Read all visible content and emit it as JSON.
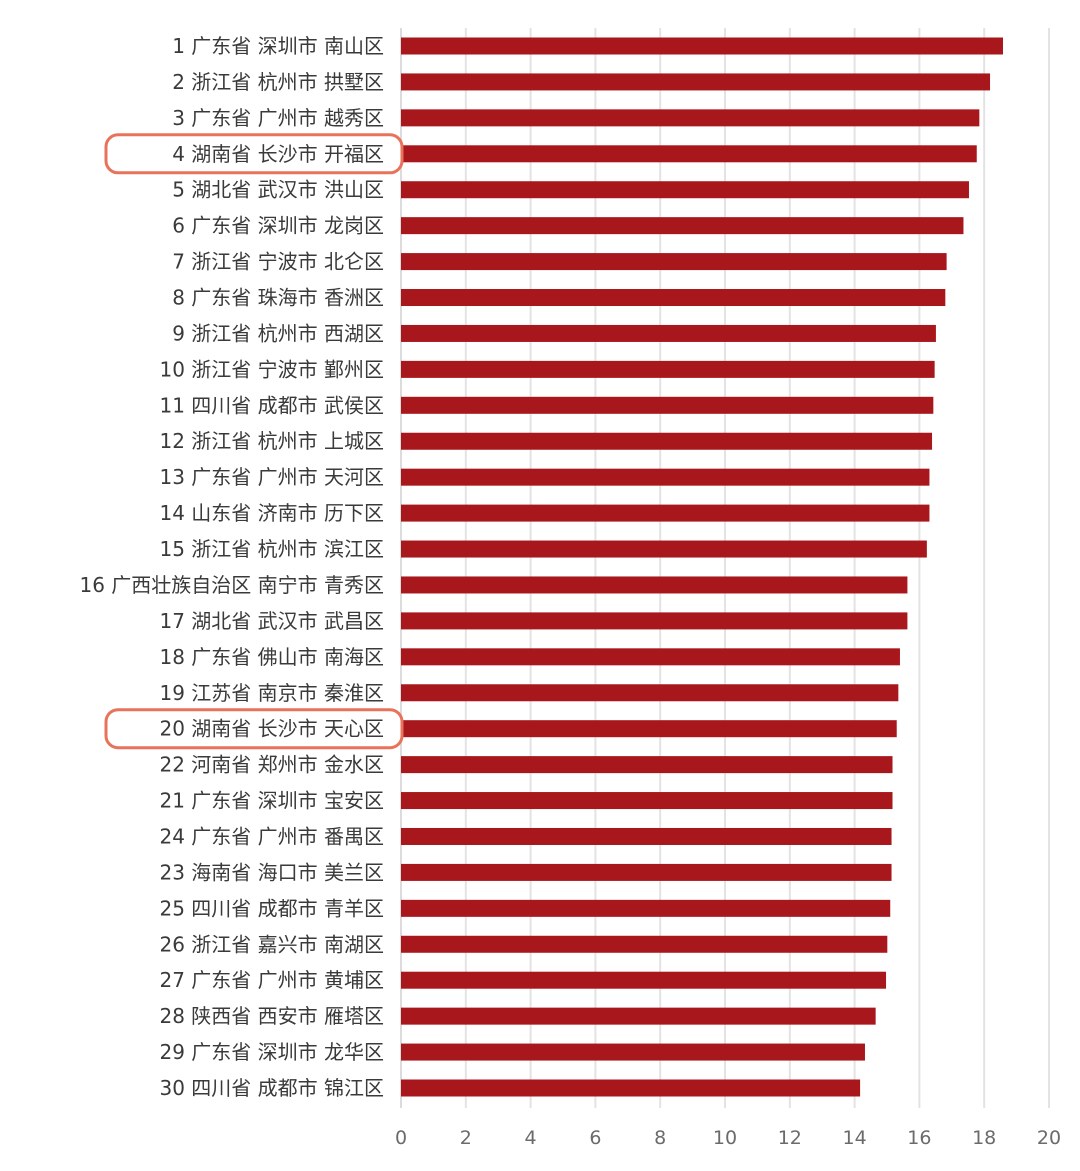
{
  "chart_data": {
    "type": "bar",
    "orientation": "horizontal",
    "categories": [
      "1 广东省  深圳市  南山区",
      "2 浙江省  杭州市  拱墅区",
      "3 广东省  广州市  越秀区",
      "4 湖南省  长沙市  开福区",
      "5 湖北省  武汉市  洪山区",
      "6 广东省  深圳市  龙岗区",
      "7 浙江省  宁波市  北仑区",
      "8 广东省  珠海市  香洲区",
      "9 浙江省  杭州市  西湖区",
      "10 浙江省  宁波市  鄞州区",
      "11 四川省  成都市  武侯区",
      "12 浙江省  杭州市  上城区",
      "13 广东省  广州市  天河区",
      "14 山东省  济南市  历下区",
      "15 浙江省  杭州市  滨江区",
      "16 广西壮族自治区  南宁市  青秀区",
      "17 湖北省  武汉市  武昌区",
      "18 广东省  佛山市  南海区",
      "19 江苏省  南京市  秦淮区",
      "20 湖南省  长沙市  天心区",
      "22 河南省  郑州市  金水区",
      "21 广东省  深圳市  宝安区",
      "24 广东省  广州市  番禺区",
      "23 海南省  海口市  美兰区",
      "25 四川省  成都市  青羊区",
      "26 浙江省  嘉兴市  南湖区",
      "27 广东省  广州市  黄埔区",
      "28 陕西省  西安市  雁塔区",
      "29 广东省  深圳市  龙华区",
      "30 四川省  成都市  锦江区"
    ],
    "values": [
      18.58,
      18.18,
      17.85,
      17.77,
      17.53,
      17.36,
      16.84,
      16.8,
      16.51,
      16.47,
      16.43,
      16.39,
      16.31,
      16.31,
      16.23,
      15.63,
      15.63,
      15.4,
      15.35,
      15.3,
      15.17,
      15.17,
      15.14,
      15.14,
      15.1,
      15.01,
      14.97,
      14.65,
      14.32,
      14.17
    ],
    "highlighted": [
      "4 湖南省  长沙市  开福区",
      "20 湖南省  长沙市  天心区"
    ],
    "xlim": [
      0,
      20
    ],
    "xticks": [
      "0",
      "2",
      "4",
      "6",
      "8",
      "10",
      "12",
      "14",
      "16",
      "18",
      "20"
    ],
    "grid": true,
    "title": "",
    "xlabel": "",
    "ylabel": "",
    "colors": {
      "bar": "#a8171b",
      "highlight": "#e8735a",
      "grid": "#e3e3e3"
    }
  }
}
